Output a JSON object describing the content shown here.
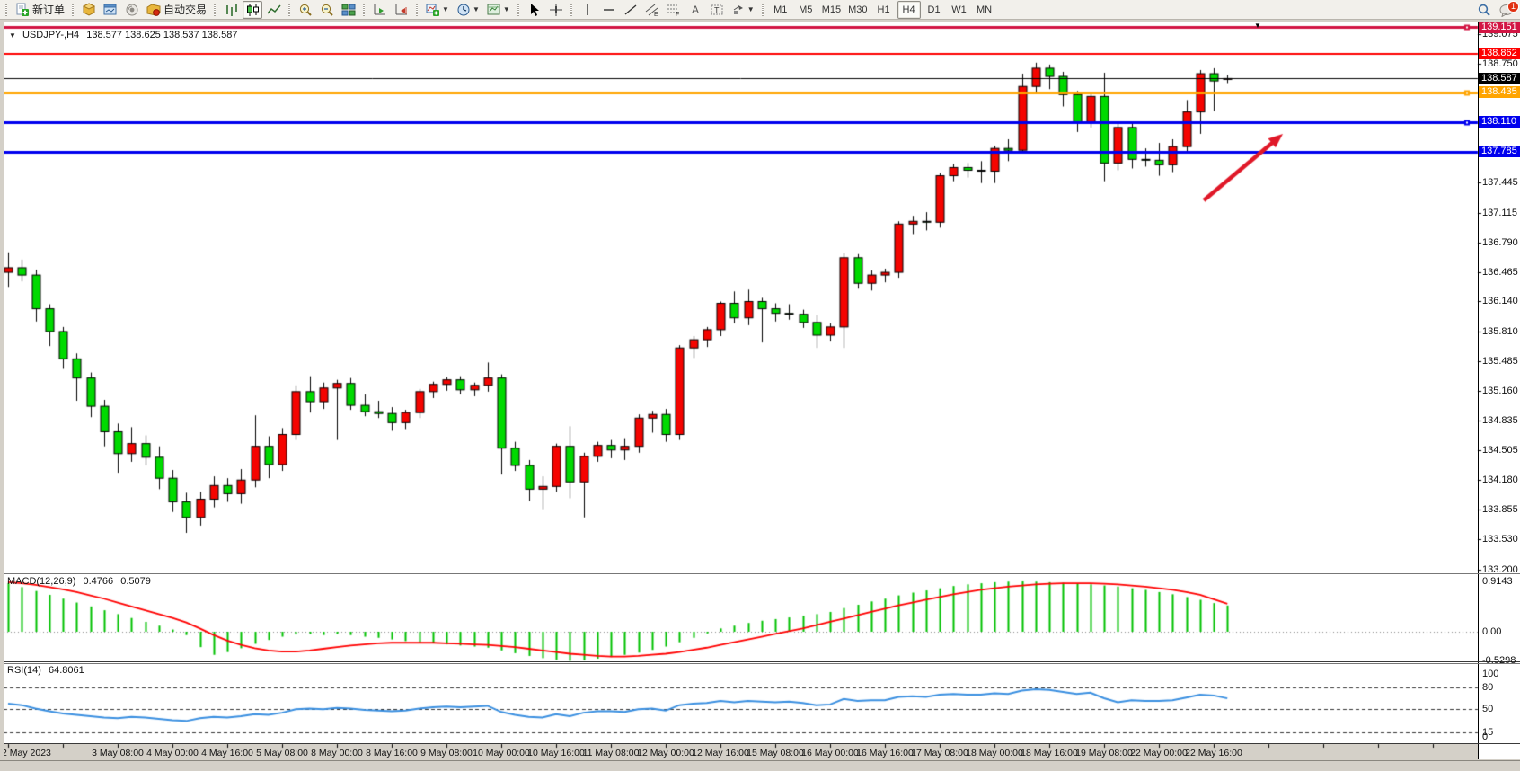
{
  "toolbar": {
    "new_order_label": "新订单",
    "auto_trading_label": "自动交易",
    "timeframes": [
      "M1",
      "M5",
      "M15",
      "M30",
      "H1",
      "H4",
      "D1",
      "W1",
      "MN"
    ],
    "active_timeframe": "H4",
    "notification_count": "1"
  },
  "chart": {
    "title_symbol": "USDJPY-,H4",
    "title_ohlc": "138.577 138.625 138.537 138.587",
    "shift_marker": "▼"
  },
  "chart_data": {
    "type": "candlestick",
    "symbol": "USDJPY",
    "period": "H4",
    "colors": {
      "bull": "#f50400",
      "bear": "#00da00",
      "candle_outline": "#000000",
      "macd_hist": "#00c000",
      "macd_signal": "#ff0000",
      "rsi_line": "#3a8fe0",
      "level_crimson": "#d21543",
      "level_red": "#fe0000",
      "level_orange": "#ffa400",
      "level_blue": "#0000ee",
      "current_price": "#000000",
      "arrow": "#e01828"
    },
    "price_axis": {
      "ticks": [
        "139.075",
        "138.750",
        "137.445",
        "137.115",
        "136.790",
        "136.465",
        "136.140",
        "135.810",
        "135.485",
        "135.160",
        "134.835",
        "134.505",
        "134.180",
        "133.855",
        "133.530",
        "133.200"
      ],
      "top_price": 139.151,
      "bottom_price": 133.2
    },
    "time_axis": {
      "labels": [
        {
          "i": 0,
          "t": "2 May 2023"
        },
        {
          "i": 8,
          "t": "3 May 08:00"
        },
        {
          "i": 12,
          "t": "4 May 00:00"
        },
        {
          "i": 16,
          "t": "4 May 16:00"
        },
        {
          "i": 20,
          "t": "5 May 08:00"
        },
        {
          "i": 24,
          "t": "8 May 00:00"
        },
        {
          "i": 28,
          "t": "8 May 16:00"
        },
        {
          "i": 32,
          "t": "9 May 08:00"
        },
        {
          "i": 36,
          "t": "10 May 00:00"
        },
        {
          "i": 40,
          "t": "10 May 16:00"
        },
        {
          "i": 44,
          "t": "11 May 08:00"
        },
        {
          "i": 48,
          "t": "12 May 00:00"
        },
        {
          "i": 52,
          "t": "12 May 16:00"
        },
        {
          "i": 56,
          "t": "15 May 08:00"
        },
        {
          "i": 60,
          "t": "16 May 00:00"
        },
        {
          "i": 64,
          "t": "16 May 16:00"
        },
        {
          "i": 68,
          "t": "17 May 08:00"
        },
        {
          "i": 72,
          "t": "18 May 00:00"
        },
        {
          "i": 76,
          "t": "18 May 16:00"
        },
        {
          "i": 80,
          "t": "19 May 08:00"
        },
        {
          "i": 84,
          "t": "22 May 00:00"
        },
        {
          "i": 88,
          "t": "22 May 16:00"
        }
      ]
    },
    "levels": [
      {
        "price": 139.151,
        "label": "139.151",
        "color": "#d21543",
        "thickness": 3,
        "handle": true
      },
      {
        "price": 138.862,
        "label": "138.862",
        "color": "#fe0000",
        "thickness": 2,
        "handle": false
      },
      {
        "price": 138.587,
        "label": "138.587",
        "color": "#000000",
        "thickness": 1,
        "handle": false,
        "current": true
      },
      {
        "price": 138.435,
        "label": "138.435",
        "color": "#ffa400",
        "thickness": 3,
        "handle": true
      },
      {
        "price": 138.11,
        "label": "138.110",
        "color": "#0000ee",
        "thickness": 3,
        "handle": true
      },
      {
        "price": 137.785,
        "label": "137.785",
        "color": "#0000ee",
        "thickness": 3,
        "handle": false
      }
    ],
    "candles": [
      [
        136.46,
        136.68,
        136.3,
        136.51
      ],
      [
        136.51,
        136.6,
        136.36,
        136.43
      ],
      [
        136.43,
        136.49,
        135.92,
        136.06
      ],
      [
        136.06,
        136.11,
        135.65,
        135.81
      ],
      [
        135.81,
        135.86,
        135.4,
        135.51
      ],
      [
        135.51,
        135.57,
        135.05,
        135.3
      ],
      [
        135.3,
        135.36,
        134.87,
        134.99
      ],
      [
        134.99,
        135.06,
        134.55,
        134.71
      ],
      [
        134.71,
        134.8,
        134.26,
        134.47
      ],
      [
        134.47,
        134.76,
        134.38,
        134.58
      ],
      [
        134.58,
        134.67,
        134.34,
        134.43
      ],
      [
        134.43,
        134.55,
        134.08,
        134.2
      ],
      [
        134.2,
        134.29,
        133.83,
        133.94
      ],
      [
        133.94,
        134.04,
        133.6,
        133.77
      ],
      [
        133.77,
        134.05,
        133.68,
        133.97
      ],
      [
        133.97,
        134.22,
        133.88,
        134.12
      ],
      [
        134.12,
        134.2,
        133.94,
        134.03
      ],
      [
        134.03,
        134.3,
        133.92,
        134.18
      ],
      [
        134.18,
        134.89,
        134.1,
        134.55
      ],
      [
        134.55,
        134.66,
        134.2,
        134.35
      ],
      [
        134.35,
        134.75,
        134.28,
        134.68
      ],
      [
        134.68,
        135.22,
        134.62,
        135.15
      ],
      [
        135.15,
        135.32,
        134.92,
        135.04
      ],
      [
        135.04,
        135.25,
        134.96,
        135.19
      ],
      [
        135.19,
        135.28,
        134.62,
        135.24
      ],
      [
        135.24,
        135.3,
        134.95,
        135.0
      ],
      [
        135.0,
        135.12,
        134.88,
        134.93
      ],
      [
        134.93,
        135.05,
        134.86,
        134.91
      ],
      [
        134.91,
        134.98,
        134.72,
        134.81
      ],
      [
        134.81,
        134.95,
        134.74,
        134.92
      ],
      [
        134.92,
        135.18,
        134.86,
        135.15
      ],
      [
        135.15,
        135.26,
        135.08,
        135.23
      ],
      [
        135.23,
        135.31,
        135.16,
        135.28
      ],
      [
        135.28,
        135.32,
        135.12,
        135.17
      ],
      [
        135.17,
        135.25,
        135.1,
        135.22
      ],
      [
        135.22,
        135.47,
        135.15,
        135.3
      ],
      [
        135.3,
        135.34,
        134.24,
        134.53
      ],
      [
        134.53,
        134.6,
        134.28,
        134.34
      ],
      [
        134.34,
        134.4,
        133.95,
        134.08
      ],
      [
        134.08,
        134.22,
        133.86,
        134.11
      ],
      [
        134.11,
        134.58,
        134.05,
        134.55
      ],
      [
        134.55,
        134.77,
        133.98,
        134.16
      ],
      [
        134.16,
        134.48,
        133.77,
        134.44
      ],
      [
        134.44,
        134.6,
        134.38,
        134.56
      ],
      [
        134.56,
        134.62,
        134.42,
        134.51
      ],
      [
        134.51,
        134.64,
        134.4,
        134.55
      ],
      [
        134.55,
        134.9,
        134.48,
        134.86
      ],
      [
        134.86,
        134.94,
        134.7,
        134.9
      ],
      [
        134.9,
        134.96,
        134.6,
        134.68
      ],
      [
        134.68,
        135.66,
        134.62,
        135.63
      ],
      [
        135.63,
        135.76,
        135.52,
        135.72
      ],
      [
        135.72,
        135.86,
        135.64,
        135.83
      ],
      [
        135.83,
        136.14,
        135.76,
        136.12
      ],
      [
        136.12,
        136.25,
        135.9,
        135.96
      ],
      [
        135.96,
        136.27,
        135.88,
        136.14
      ],
      [
        136.14,
        136.18,
        135.69,
        136.06
      ],
      [
        136.06,
        136.12,
        135.92,
        136.01
      ],
      [
        136.01,
        136.11,
        135.94,
        136.0
      ],
      [
        136.0,
        136.05,
        135.85,
        135.91
      ],
      [
        135.91,
        135.99,
        135.63,
        135.77
      ],
      [
        135.77,
        135.9,
        135.7,
        135.86
      ],
      [
        135.86,
        136.67,
        135.63,
        136.62
      ],
      [
        136.62,
        136.66,
        136.28,
        136.34
      ],
      [
        136.34,
        136.48,
        136.26,
        136.43
      ],
      [
        136.43,
        136.5,
        136.35,
        136.46
      ],
      [
        136.46,
        137.02,
        136.4,
        136.99
      ],
      [
        136.99,
        137.08,
        136.88,
        137.02
      ],
      [
        137.02,
        137.12,
        136.92,
        137.01
      ],
      [
        137.01,
        137.55,
        136.95,
        137.52
      ],
      [
        137.52,
        137.65,
        137.46,
        137.61
      ],
      [
        137.61,
        137.66,
        137.5,
        137.58
      ],
      [
        137.58,
        137.68,
        137.44,
        137.57
      ],
      [
        137.57,
        137.85,
        137.44,
        137.82
      ],
      [
        137.82,
        137.92,
        137.68,
        137.8
      ],
      [
        137.8,
        138.64,
        137.78,
        138.5
      ],
      [
        138.5,
        138.76,
        138.44,
        138.7
      ],
      [
        138.7,
        138.74,
        138.47,
        138.61
      ],
      [
        138.61,
        138.66,
        138.28,
        138.41
      ],
      [
        138.41,
        138.45,
        138.0,
        138.11
      ],
      [
        138.11,
        138.42,
        138.05,
        138.39
      ],
      [
        138.39,
        138.65,
        137.46,
        137.66
      ],
      [
        137.66,
        138.1,
        137.58,
        138.05
      ],
      [
        138.05,
        138.09,
        137.6,
        137.7
      ],
      [
        137.7,
        137.82,
        137.62,
        137.69
      ],
      [
        137.69,
        137.88,
        137.52,
        137.64
      ],
      [
        137.64,
        137.92,
        137.56,
        137.84
      ],
      [
        137.84,
        138.35,
        137.78,
        138.22
      ],
      [
        138.22,
        138.68,
        137.98,
        138.64
      ],
      [
        138.64,
        138.7,
        138.23,
        138.56
      ],
      [
        138.577,
        138.625,
        138.537,
        138.587
      ]
    ],
    "macd": {
      "label": "MACD(12,26,9)",
      "value_main": "0.4766",
      "value_signal": "0.5079",
      "scale": [
        "0.9143",
        "0.00",
        "-0.5298"
      ],
      "scale_values": [
        0.9143,
        0.0,
        -0.5298
      ],
      "hist": [
        0.88,
        0.81,
        0.74,
        0.67,
        0.6,
        0.53,
        0.46,
        0.39,
        0.32,
        0.25,
        0.18,
        0.11,
        0.04,
        -0.06,
        -0.28,
        -0.42,
        -0.37,
        -0.3,
        -0.22,
        -0.15,
        -0.09,
        -0.05,
        -0.04,
        -0.06,
        -0.04,
        -0.06,
        -0.09,
        -0.11,
        -0.14,
        -0.17,
        -0.19,
        -0.21,
        -0.23,
        -0.25,
        -0.27,
        -0.29,
        -0.34,
        -0.39,
        -0.44,
        -0.48,
        -0.51,
        -0.53,
        -0.52,
        -0.49,
        -0.46,
        -0.42,
        -0.38,
        -0.33,
        -0.27,
        -0.19,
        -0.11,
        -0.03,
        0.06,
        0.11,
        0.16,
        0.2,
        0.23,
        0.26,
        0.29,
        0.32,
        0.36,
        0.43,
        0.49,
        0.55,
        0.6,
        0.66,
        0.71,
        0.75,
        0.79,
        0.83,
        0.86,
        0.88,
        0.9,
        0.91,
        0.9143,
        0.91,
        0.9,
        0.89,
        0.88,
        0.86,
        0.84,
        0.82,
        0.79,
        0.76,
        0.72,
        0.68,
        0.63,
        0.58,
        0.52,
        0.4766
      ],
      "signal": [
        0.9,
        0.88,
        0.85,
        0.81,
        0.77,
        0.72,
        0.66,
        0.6,
        0.53,
        0.46,
        0.39,
        0.32,
        0.25,
        0.17,
        0.06,
        -0.06,
        -0.16,
        -0.24,
        -0.3,
        -0.34,
        -0.36,
        -0.36,
        -0.34,
        -0.31,
        -0.28,
        -0.25,
        -0.23,
        -0.21,
        -0.2,
        -0.2,
        -0.2,
        -0.2,
        -0.21,
        -0.22,
        -0.23,
        -0.24,
        -0.26,
        -0.28,
        -0.31,
        -0.34,
        -0.37,
        -0.4,
        -0.42,
        -0.44,
        -0.45,
        -0.45,
        -0.44,
        -0.42,
        -0.4,
        -0.37,
        -0.33,
        -0.29,
        -0.24,
        -0.19,
        -0.14,
        -0.09,
        -0.04,
        0.01,
        0.06,
        0.12,
        0.18,
        0.24,
        0.3,
        0.36,
        0.42,
        0.48,
        0.53,
        0.58,
        0.63,
        0.68,
        0.72,
        0.76,
        0.79,
        0.82,
        0.84,
        0.86,
        0.87,
        0.88,
        0.88,
        0.88,
        0.87,
        0.86,
        0.84,
        0.82,
        0.79,
        0.76,
        0.72,
        0.67,
        0.59,
        0.5079
      ]
    },
    "rsi": {
      "label": "RSI(14)",
      "value": "64.8061",
      "scale": [
        "100",
        "80",
        "50",
        "15",
        "0"
      ],
      "scale_values": [
        100,
        80,
        50,
        15,
        0
      ],
      "levels": [
        80,
        50,
        15
      ],
      "series": [
        57,
        55,
        50,
        46,
        43,
        41,
        39,
        37,
        36,
        38,
        37,
        35,
        33,
        32,
        36,
        38,
        37,
        39,
        42,
        41,
        44,
        49,
        50,
        49,
        51,
        50,
        48,
        47,
        46,
        47,
        50,
        52,
        53,
        52,
        53,
        54,
        45,
        41,
        38,
        37,
        42,
        39,
        44,
        46,
        46,
        45,
        49,
        50,
        47,
        55,
        57,
        58,
        61,
        59,
        61,
        60,
        59,
        60,
        58,
        55,
        56,
        64,
        61,
        62,
        62,
        67,
        68,
        67,
        70,
        71,
        70,
        70,
        72,
        71,
        76,
        78,
        77,
        74,
        71,
        73,
        65,
        59,
        62,
        61,
        61,
        62,
        66,
        70,
        69,
        64.8
      ],
      "ylim": [
        0,
        100
      ]
    },
    "annotations": {
      "arrow": {
        "from": [
          1340,
          223
        ],
        "to": [
          1428,
          149
        ]
      }
    }
  }
}
